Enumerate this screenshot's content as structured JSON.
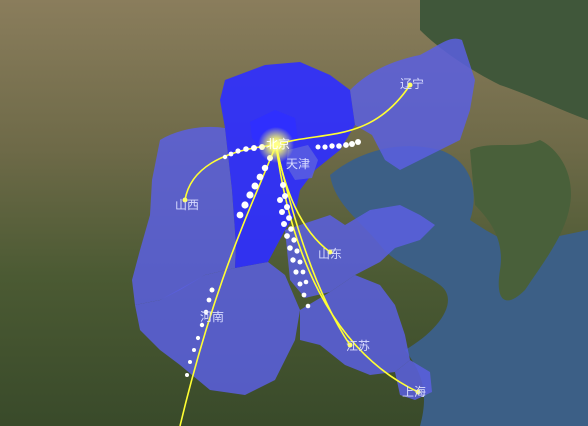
{
  "map": {
    "provinces": [
      {
        "id": "beijing",
        "label": "北京",
        "highlight": true
      },
      {
        "id": "tianjin",
        "label": "天津"
      },
      {
        "id": "hebei",
        "label": "",
        "highlight": true
      },
      {
        "id": "liaoning",
        "label": "辽宁"
      },
      {
        "id": "shanxi",
        "label": "山西"
      },
      {
        "id": "shandong",
        "label": "山东"
      },
      {
        "id": "henan",
        "label": "河南"
      },
      {
        "id": "jiangsu",
        "label": "江苏"
      },
      {
        "id": "shanghai",
        "label": "上海"
      }
    ],
    "colors": {
      "province_fill": "#5a5fe0",
      "highlight_fill": "#2f2fff",
      "flow_line": "#ffff33",
      "flow_dots": "#ffffff",
      "hub_glow": "#ffff66"
    },
    "flows": [
      {
        "from": "北京",
        "to": "辽宁"
      },
      {
        "from": "北京",
        "to": "山西"
      },
      {
        "from": "北京",
        "to": "山东"
      },
      {
        "from": "北京",
        "to": "河南"
      },
      {
        "from": "北京",
        "to": "江苏"
      },
      {
        "from": "北京",
        "to": "上海"
      }
    ]
  }
}
